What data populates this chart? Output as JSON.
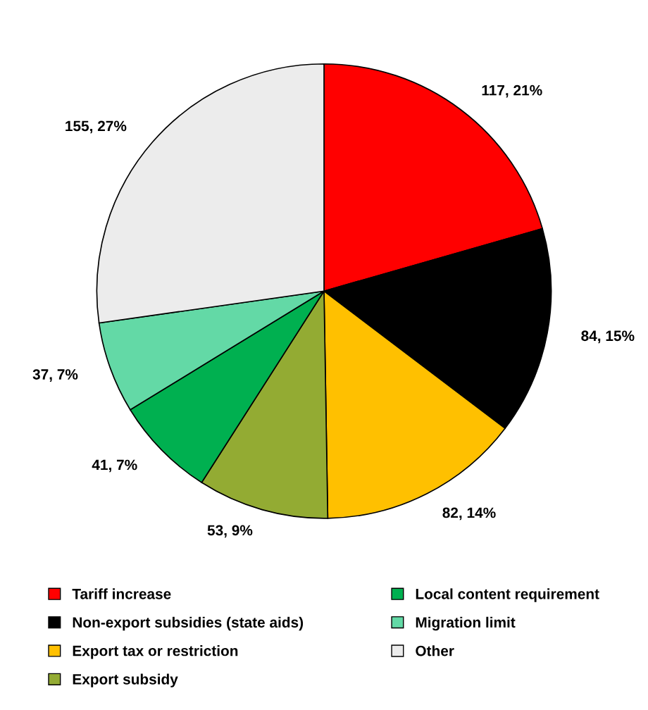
{
  "chart_data": {
    "type": "pie",
    "categories": [
      "Tariff increase",
      "Non-export subsidies (state aids)",
      "Export tax or restriction",
      "Export subsidy",
      "Local content requirement",
      "Migration limit",
      "Other"
    ],
    "values": [
      117,
      84,
      82,
      53,
      41,
      37,
      155
    ],
    "colors": [
      "#ff0000",
      "#000000",
      "#ffc000",
      "#93ab33",
      "#00b050",
      "#63d9a6",
      "#ececec"
    ],
    "value_labels": [
      "117, 21%",
      "84, 15%",
      "82, 14%",
      "53, 9%",
      "41, 7%",
      "37, 7%",
      "155, 27%"
    ],
    "legend": "bottom"
  }
}
